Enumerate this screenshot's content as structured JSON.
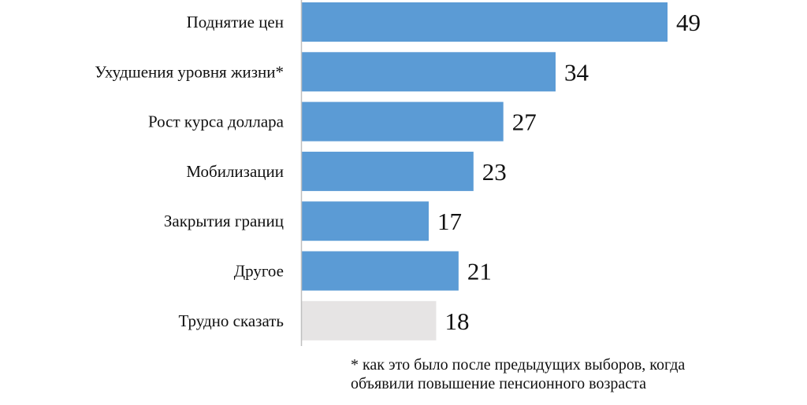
{
  "chart_data": {
    "type": "bar",
    "orientation": "horizontal",
    "categories": [
      "Поднятие цен",
      "Ухудшения уровня жизни*",
      "Рост курса доллара",
      "Мобилизации",
      "Закрытия границ",
      "Другое",
      "Трудно сказать"
    ],
    "values": [
      49,
      34,
      27,
      23,
      17,
      21,
      18
    ],
    "colors": [
      "#5b9bd5",
      "#5b9bd5",
      "#5b9bd5",
      "#5b9bd5",
      "#5b9bd5",
      "#5b9bd5",
      "#e6e4e4"
    ],
    "axis_color": "#bfbfbf",
    "xlim": [
      0,
      50
    ],
    "grid": false,
    "legend": "none"
  },
  "footnote": {
    "line1": "* как это было после предыдущих выборов, когда",
    "line2": "объявили повышение пенсионного возраста"
  }
}
